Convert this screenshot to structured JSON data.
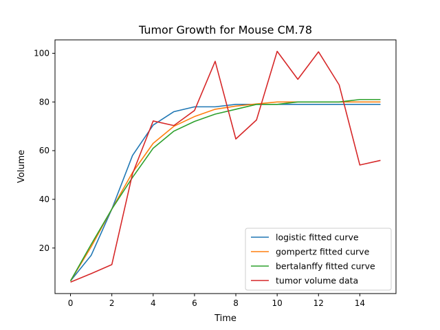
{
  "chart_data": {
    "type": "line",
    "title": "Tumor Growth for Mouse CM.78",
    "xlabel": "Time",
    "ylabel": "Volume",
    "xlim": [
      -0.75,
      15.75
    ],
    "ylim": [
      1.3,
      105.5
    ],
    "xticks": [
      0,
      2,
      4,
      6,
      8,
      10,
      12,
      14
    ],
    "yticks": [
      20,
      40,
      60,
      80,
      100
    ],
    "grid": false,
    "legend_position": "lower right",
    "x": [
      0,
      1,
      2,
      3,
      4,
      5,
      6,
      7,
      8,
      9,
      10,
      11,
      12,
      13,
      14,
      15
    ],
    "series": [
      {
        "name": "logistic fitted curve",
        "color": "#1f77b4",
        "values": [
          6.5,
          17.0,
          36.0,
          58.0,
          70.5,
          76.0,
          78.0,
          78.0,
          79.0,
          79.0,
          79.0,
          79.0,
          79.0,
          79.0,
          79.0,
          79.0
        ]
      },
      {
        "name": "gompertz fitted curve",
        "color": "#ff7f0e",
        "values": [
          6.5,
          20.5,
          36.0,
          51.0,
          63.0,
          70.0,
          74.0,
          77.0,
          78.3,
          79.2,
          80.0,
          80.0,
          80.0,
          80.0,
          80.0,
          80.0
        ]
      },
      {
        "name": "bertalanffy fitted curve",
        "color": "#2ca02c",
        "values": [
          6.5,
          21.5,
          36.0,
          49.0,
          61.0,
          68.0,
          72.0,
          75.0,
          77.0,
          79.0,
          79.0,
          80.0,
          80.0,
          80.0,
          81.0,
          81.0
        ]
      },
      {
        "name": "tumor volume data",
        "color": "#d62728",
        "values": [
          6.0,
          9.5,
          13.2,
          50.5,
          72.2,
          70.3,
          76.5,
          96.7,
          64.8,
          72.6,
          100.8,
          89.3,
          100.6,
          87.0,
          54.1,
          56.0
        ]
      }
    ]
  }
}
